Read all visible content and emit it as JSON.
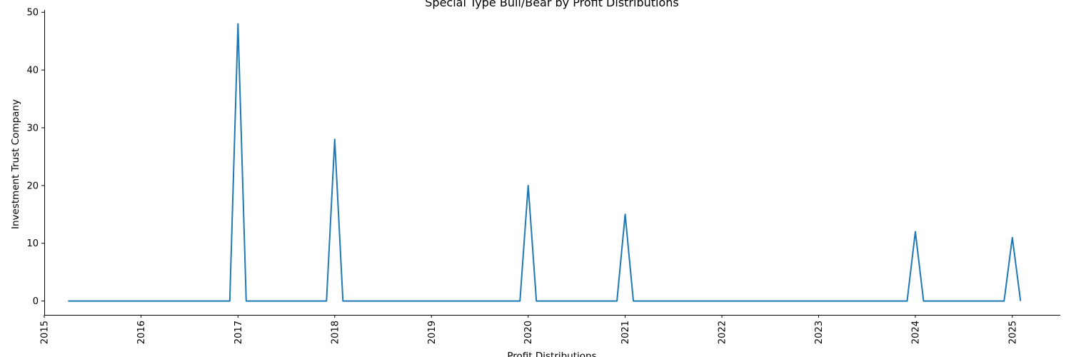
{
  "chart_data": {
    "type": "line",
    "title": "Special Type Bull/Bear by Profit Distributions",
    "xlabel": "Profit Distributions",
    "ylabel": "Investment Trust Company",
    "xlim": [
      "2015-01-01",
      "2025-07-01"
    ],
    "ylim": [
      -2.4,
      50.4
    ],
    "grid": false,
    "x_ticks": [
      "2015",
      "2016",
      "2017",
      "2018",
      "2019",
      "2020",
      "2021",
      "2022",
      "2023",
      "2024",
      "2025"
    ],
    "y_ticks": [
      "0",
      "10",
      "20",
      "30",
      "40",
      "50"
    ],
    "series": [
      {
        "color": "#1f77b4",
        "points": [
          [
            "2015-04-01",
            0
          ],
          [
            "2016-12-01",
            0
          ],
          [
            "2017-01-01",
            48
          ],
          [
            "2017-02-01",
            0
          ],
          [
            "2017-12-01",
            0
          ],
          [
            "2018-01-01",
            28
          ],
          [
            "2018-02-01",
            0
          ],
          [
            "2019-12-01",
            0
          ],
          [
            "2020-01-01",
            20
          ],
          [
            "2020-02-01",
            0
          ],
          [
            "2020-12-01",
            0
          ],
          [
            "2021-01-01",
            15
          ],
          [
            "2021-02-01",
            0
          ],
          [
            "2023-12-01",
            0
          ],
          [
            "2024-01-01",
            12
          ],
          [
            "2024-02-01",
            0
          ],
          [
            "2024-12-01",
            0
          ],
          [
            "2025-01-01",
            11
          ],
          [
            "2025-02-01",
            0
          ]
        ]
      }
    ]
  }
}
